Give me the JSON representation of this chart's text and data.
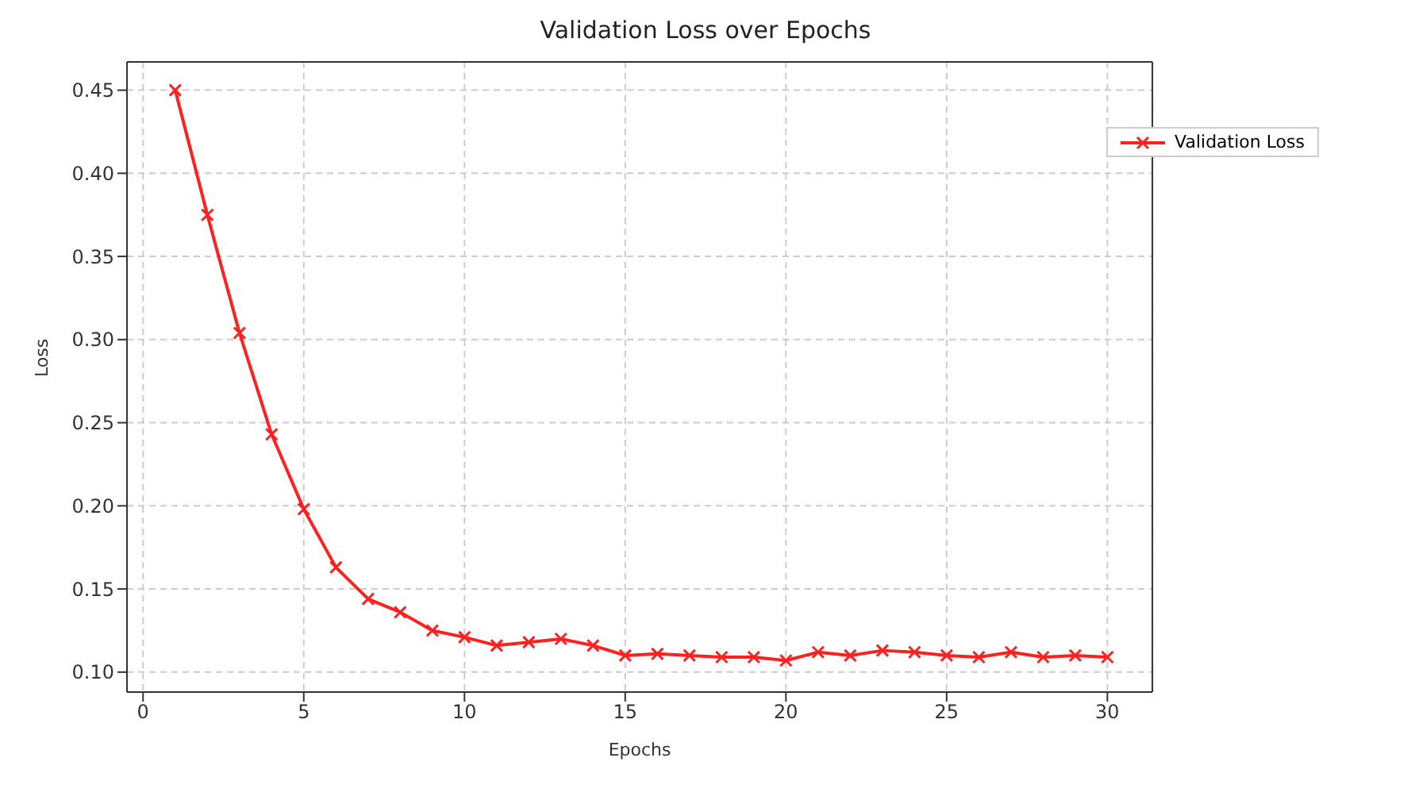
{
  "chart_data": {
    "type": "line",
    "title": "Validation Loss over Epochs",
    "xlabel": "Epochs",
    "ylabel": "Loss",
    "x": [
      1,
      2,
      3,
      4,
      5,
      6,
      7,
      8,
      9,
      10,
      11,
      12,
      13,
      14,
      15,
      16,
      17,
      18,
      19,
      20,
      21,
      22,
      23,
      24,
      25,
      26,
      27,
      28,
      29,
      30
    ],
    "series": [
      {
        "name": "Validation Loss",
        "color": "#ff2020",
        "values": [
          0.45,
          0.375,
          0.304,
          0.243,
          0.198,
          0.163,
          0.144,
          0.136,
          0.125,
          0.121,
          0.116,
          0.118,
          0.12,
          0.116,
          0.11,
          0.111,
          0.11,
          0.109,
          0.109,
          0.107,
          0.112,
          0.11,
          0.113,
          0.112,
          0.11,
          0.109,
          0.112,
          0.109,
          0.11,
          0.109
        ]
      }
    ],
    "xlim": [
      -0.5,
      31.4
    ],
    "xticks": [
      0,
      5,
      10,
      15,
      20,
      25,
      30
    ],
    "ylim": [
      0.088,
      0.467
    ],
    "yticks": [
      {
        "value": 0.1,
        "label": "0.10"
      },
      {
        "value": 0.15,
        "label": "0.15"
      },
      {
        "value": 0.2,
        "label": "0.20"
      },
      {
        "value": 0.25,
        "label": "0.25"
      },
      {
        "value": 0.3,
        "label": "0.30"
      },
      {
        "value": 0.35,
        "label": "0.35"
      },
      {
        "value": 0.4,
        "label": "0.40"
      },
      {
        "value": 0.45,
        "label": "0.45"
      }
    ],
    "grid": true,
    "legend": "top right",
    "marker": "cross",
    "line_style": "solid"
  }
}
